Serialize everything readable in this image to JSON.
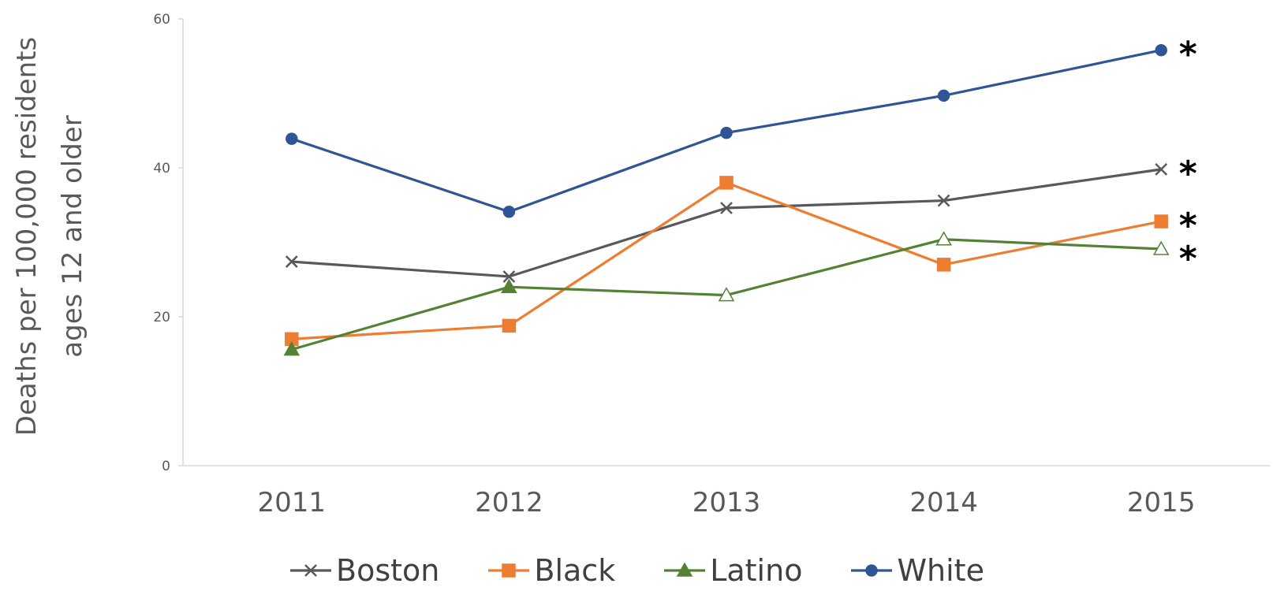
{
  "chart_data": {
    "type": "line",
    "categories": [
      "2011",
      "2012",
      "2013",
      "2014",
      "2015"
    ],
    "ylabel": [
      "Deaths per 100,000 residents",
      "ages 12 and older"
    ],
    "ylim": [
      0,
      60
    ],
    "yticks": [
      0,
      20,
      40,
      60
    ],
    "grid": false,
    "legend_position": "bottom",
    "series": [
      {
        "name": "Boston",
        "color": "#595959",
        "marker": "x",
        "values": [
          27.4,
          25.4,
          34.6,
          35.6,
          39.8
        ],
        "significance": "*"
      },
      {
        "name": "Black",
        "color": "#ED7D31",
        "marker": "square",
        "values": [
          17.0,
          18.8,
          38.0,
          27.0,
          32.8
        ],
        "significance": "*"
      },
      {
        "name": "Latino",
        "color": "#548235",
        "marker": "triangle",
        "values": [
          15.6,
          24.0,
          22.9,
          30.4,
          29.1
        ],
        "hollow_points": [
          2,
          3,
          4
        ],
        "significance": "*"
      },
      {
        "name": "White",
        "color": "#2F5597",
        "marker": "circle",
        "values": [
          43.9,
          34.1,
          44.7,
          49.7,
          55.8
        ],
        "significance": "*"
      }
    ]
  }
}
